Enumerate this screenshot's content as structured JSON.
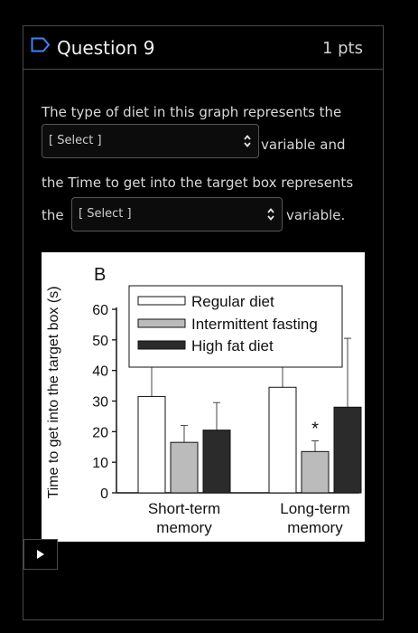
{
  "question": {
    "title": "Question 9",
    "points": "1 pts",
    "bookmark_icon": "bookmark-icon"
  },
  "text": {
    "line1": "The type of diet in this graph represents the",
    "after_select1": "variable and",
    "line3": "the Time to get into the target box represents",
    "before_select2": "the",
    "after_select2": "variable."
  },
  "selects": {
    "select1": "[ Select ]",
    "select2": "[ Select ]",
    "caret_icon": "up-down-caret-icon"
  },
  "colors": {
    "background": "#000000",
    "border": "#4a4a4a",
    "text": "#d9d9d9",
    "regular_diet": "#ffffff",
    "intermittent_fasting": "#bbbbbb",
    "high_fat_diet": "#2b2b2b"
  },
  "chart_data": {
    "type": "bar",
    "panel_label": "B",
    "ylabel": "Time to get into the target box (s)",
    "ylim": [
      0,
      60
    ],
    "yticks": [
      0,
      10,
      20,
      30,
      40,
      50,
      60
    ],
    "categories": [
      "Short-term memory",
      "Long-term memory"
    ],
    "category_lines": [
      [
        "Short-term",
        "memory"
      ],
      [
        "Long-term",
        "memory"
      ]
    ],
    "series": [
      {
        "name": "Regular diet",
        "values": [
          31.5,
          34.5
        ],
        "errors": [
          12.5,
          16
        ]
      },
      {
        "name": "Intermittent fasting",
        "values": [
          16.5,
          13.5
        ],
        "errors": [
          5.5,
          3.5
        ]
      },
      {
        "name": "High fat diet",
        "values": [
          20.5,
          28
        ],
        "errors": [
          9,
          22.5
        ]
      }
    ],
    "annotations": [
      {
        "category": "Long-term memory",
        "series": "Intermittent fasting",
        "text": "*"
      }
    ],
    "legend_position": "top"
  },
  "player": {
    "play_icon": "play-icon"
  }
}
